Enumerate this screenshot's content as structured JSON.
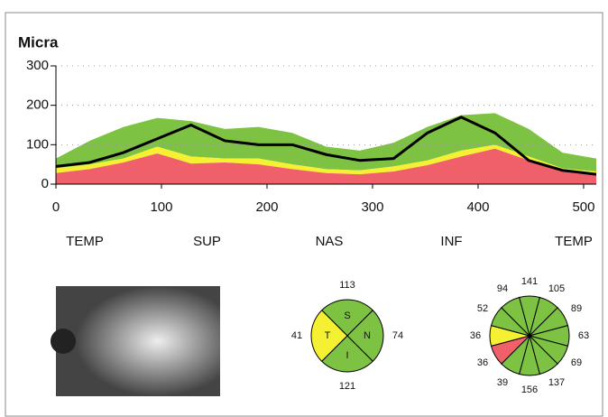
{
  "chart_data": [
    {
      "type": "area",
      "title": "Micra",
      "x": [
        0,
        32,
        64,
        96,
        128,
        160,
        192,
        224,
        256,
        288,
        320,
        352,
        384,
        416,
        448,
        480,
        512
      ],
      "series": [
        {
          "color": "#f0606a",
          "values": [
            28,
            38,
            55,
            78,
            52,
            55,
            50,
            38,
            28,
            25,
            32,
            48,
            70,
            90,
            60,
            35,
            25
          ]
        },
        {
          "color": "#f5f032",
          "values": [
            12,
            12,
            10,
            17,
            18,
            10,
            15,
            12,
            10,
            10,
            13,
            12,
            15,
            10,
            10,
            5,
            7
          ]
        },
        {
          "color": "#7dc242",
          "values": [
            25,
            60,
            80,
            73,
            90,
            75,
            80,
            80,
            57,
            50,
            60,
            85,
            90,
            80,
            70,
            40,
            33
          ]
        },
        {
          "type": "line",
          "color": "#000000",
          "values": [
            45,
            55,
            80,
            115,
            150,
            110,
            100,
            100,
            75,
            60,
            65,
            130,
            170,
            130,
            60,
            35,
            25
          ]
        }
      ],
      "position_labels": [
        "TEMP",
        "SUP",
        "NAS",
        "INF",
        "TEMP"
      ],
      "xlim": [
        0,
        512
      ],
      "ylim": [
        0,
        300
      ],
      "xticks": [
        0,
        100,
        200,
        300,
        400,
        500
      ],
      "yticks": [
        0,
        100,
        200,
        300
      ],
      "grid": true
    },
    {
      "type": "sector",
      "categories": [
        "S",
        "N",
        "I",
        "T"
      ],
      "values": [
        113,
        74,
        121,
        41
      ],
      "colors": [
        "#7dc242",
        "#7dc242",
        "#7dc242",
        "#f5f032"
      ]
    },
    {
      "type": "sector",
      "values": [
        141,
        105,
        89,
        63,
        69,
        137,
        156,
        39,
        36,
        36,
        52,
        94
      ],
      "colors": [
        "#7dc242",
        "#7dc242",
        "#7dc242",
        "#7dc242",
        "#7dc242",
        "#7dc242",
        "#7dc242",
        "#7dc242",
        "#f0606a",
        "#f5f032",
        "#7dc242",
        "#7dc242"
      ]
    }
  ]
}
